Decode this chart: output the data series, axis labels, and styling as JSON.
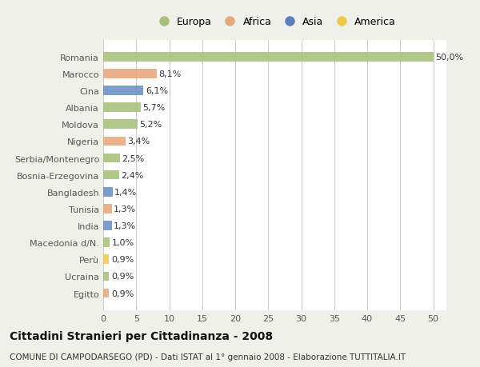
{
  "categories": [
    "Romania",
    "Marocco",
    "Cina",
    "Albania",
    "Moldova",
    "Nigeria",
    "Serbia/Montenegro",
    "Bosnia-Erzegovina",
    "Bangladesh",
    "Tunisia",
    "India",
    "Macedonia d/N.",
    "Perù",
    "Ucraina",
    "Egitto"
  ],
  "values": [
    50.0,
    8.1,
    6.1,
    5.7,
    5.2,
    3.4,
    2.5,
    2.4,
    1.4,
    1.3,
    1.3,
    1.0,
    0.9,
    0.9,
    0.9
  ],
  "labels": [
    "50,0%",
    "8,1%",
    "6,1%",
    "5,7%",
    "5,2%",
    "3,4%",
    "2,5%",
    "2,4%",
    "1,4%",
    "1,3%",
    "1,3%",
    "1,0%",
    "0,9%",
    "0,9%",
    "0,9%"
  ],
  "colors": [
    "#a8c07a",
    "#e8a87c",
    "#6a8fc2",
    "#a8c07a",
    "#a8c07a",
    "#e8a87c",
    "#a8c07a",
    "#a8c07a",
    "#6a8fc2",
    "#e8a87c",
    "#6a8fc2",
    "#a8c07a",
    "#f0c84a",
    "#a8c07a",
    "#e8a87c"
  ],
  "legend_labels": [
    "Europa",
    "Africa",
    "Asia",
    "America"
  ],
  "legend_colors": [
    "#a8c07a",
    "#e8a87c",
    "#5a7fc2",
    "#f0c84a"
  ],
  "title": "Cittadini Stranieri per Cittadinanza - 2008",
  "subtitle": "COMUNE DI CAMPODARSEGO (PD) - Dati ISTAT al 1° gennaio 2008 - Elaborazione TUTTITALIA.IT",
  "xlim": [
    0,
    52
  ],
  "xticks": [
    0,
    5,
    10,
    15,
    20,
    25,
    30,
    35,
    40,
    45,
    50
  ],
  "background_color": "#f0f0ea",
  "bar_background": "#ffffff",
  "grid_color": "#cccccc",
  "title_fontsize": 10,
  "subtitle_fontsize": 7.5,
  "label_fontsize": 8,
  "tick_fontsize": 8,
  "legend_fontsize": 9
}
